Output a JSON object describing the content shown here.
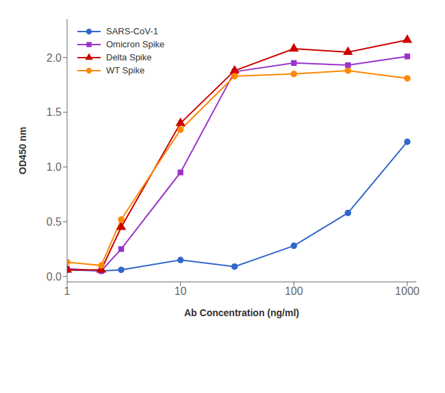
{
  "chart_data": {
    "type": "line",
    "xlabel": "Ab Concentration (ng/ml)",
    "ylabel": "OD450 nm",
    "log": "x",
    "xlim": [
      1,
      1200
    ],
    "ylim": [
      -0.05,
      2.35
    ],
    "xticks": [
      1,
      10,
      100,
      1000
    ],
    "yticks": [
      {
        "value": 0.0,
        "label": "0.0"
      },
      0.5,
      {
        "value": 1.0,
        "label": "1.0"
      },
      1.5,
      {
        "value": 2.0,
        "label": "2.0"
      }
    ],
    "legend": "upper left",
    "x": [
      1,
      2,
      3,
      10,
      30,
      100,
      300,
      1000
    ],
    "series": [
      {
        "name": "SARS-CoV-1",
        "color": "#3366CC",
        "marker": "circle",
        "values": [
          0.06,
          0.05,
          0.06,
          0.15,
          0.09,
          0.28,
          0.58,
          1.23
        ]
      },
      {
        "name": "Omicron Spike",
        "color": "#9933CC",
        "marker": "square",
        "values": [
          0.07,
          0.05,
          0.25,
          0.95,
          1.87,
          1.95,
          1.93,
          2.01
        ]
      },
      {
        "name": "Delta Spike",
        "color": "#CC0000",
        "marker": "triangle",
        "values": [
          0.06,
          0.06,
          0.45,
          1.4,
          1.88,
          2.08,
          2.05,
          2.16
        ]
      },
      {
        "name": "WT Spike",
        "color": "#FF8800",
        "marker": "circle",
        "values": [
          0.13,
          0.1,
          0.52,
          1.34,
          1.83,
          1.85,
          1.88,
          1.81
        ]
      }
    ]
  }
}
